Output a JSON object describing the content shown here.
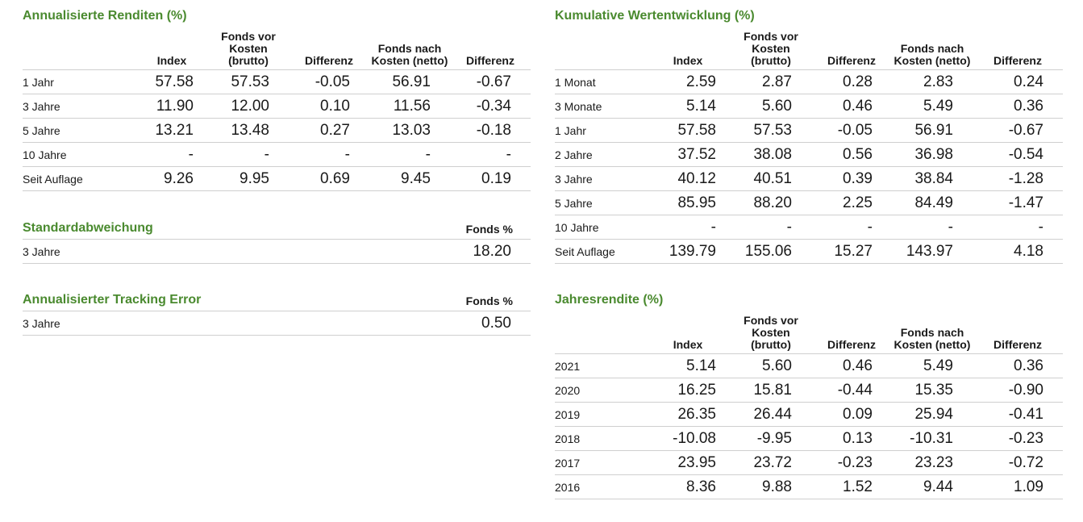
{
  "annualized": {
    "title": "Annualisierte Renditen (%)",
    "headers": [
      "",
      "Index",
      "Fonds vor Kosten (brutto)",
      "Differenz",
      "Fonds nach Kosten (netto)",
      "Differenz"
    ],
    "rows": [
      [
        "1 Jahr",
        "57.58",
        "57.53",
        "-0.05",
        "56.91",
        "-0.67"
      ],
      [
        "3 Jahre",
        "11.90",
        "12.00",
        "0.10",
        "11.56",
        "-0.34"
      ],
      [
        "5 Jahre",
        "13.21",
        "13.48",
        "0.27",
        "13.03",
        "-0.18"
      ],
      [
        "10 Jahre",
        "-",
        "-",
        "-",
        "-",
        "-"
      ],
      [
        "Seit Auflage",
        "9.26",
        "9.95",
        "0.69",
        "9.45",
        "0.19"
      ]
    ]
  },
  "std_dev": {
    "title": "Standardabweichung",
    "header": "Fonds %",
    "label": "3 Jahre",
    "value": "18.20"
  },
  "tracking_error": {
    "title": "Annualisierter Tracking Error",
    "header": "Fonds %",
    "label": "3 Jahre",
    "value": "0.50"
  },
  "cumulative": {
    "title": "Kumulative Wertentwicklung (%)",
    "headers": [
      "",
      "Index",
      "Fonds vor Kosten (brutto)",
      "Differenz",
      "Fonds nach Kosten (netto)",
      "Differenz"
    ],
    "rows": [
      [
        "1 Monat",
        "2.59",
        "2.87",
        "0.28",
        "2.83",
        "0.24"
      ],
      [
        "3 Monate",
        "5.14",
        "5.60",
        "0.46",
        "5.49",
        "0.36"
      ],
      [
        "1 Jahr",
        "57.58",
        "57.53",
        "-0.05",
        "56.91",
        "-0.67"
      ],
      [
        "2 Jahre",
        "37.52",
        "38.08",
        "0.56",
        "36.98",
        "-0.54"
      ],
      [
        "3 Jahre",
        "40.12",
        "40.51",
        "0.39",
        "38.84",
        "-1.28"
      ],
      [
        "5 Jahre",
        "85.95",
        "88.20",
        "2.25",
        "84.49",
        "-1.47"
      ],
      [
        "10 Jahre",
        "-",
        "-",
        "-",
        "-",
        "-"
      ],
      [
        "Seit Auflage",
        "139.79",
        "155.06",
        "15.27",
        "143.97",
        "4.18"
      ]
    ]
  },
  "yearly": {
    "title": "Jahresrendite  (%)",
    "headers": [
      "",
      "Index",
      "Fonds vor Kosten (brutto)",
      "Differenz",
      "Fonds nach Kosten (netto)",
      "Differenz"
    ],
    "rows": [
      [
        "2021",
        "5.14",
        "5.60",
        "0.46",
        "5.49",
        "0.36"
      ],
      [
        "2020",
        "16.25",
        "15.81",
        "-0.44",
        "15.35",
        "-0.90"
      ],
      [
        "2019",
        "26.35",
        "26.44",
        "0.09",
        "25.94",
        "-0.41"
      ],
      [
        "2018",
        "-10.08",
        "-9.95",
        "0.13",
        "-10.31",
        "-0.23"
      ],
      [
        "2017",
        "23.95",
        "23.72",
        "-0.23",
        "23.23",
        "-0.72"
      ],
      [
        "2016",
        "8.36",
        "9.88",
        "1.52",
        "9.44",
        "1.09"
      ]
    ]
  }
}
